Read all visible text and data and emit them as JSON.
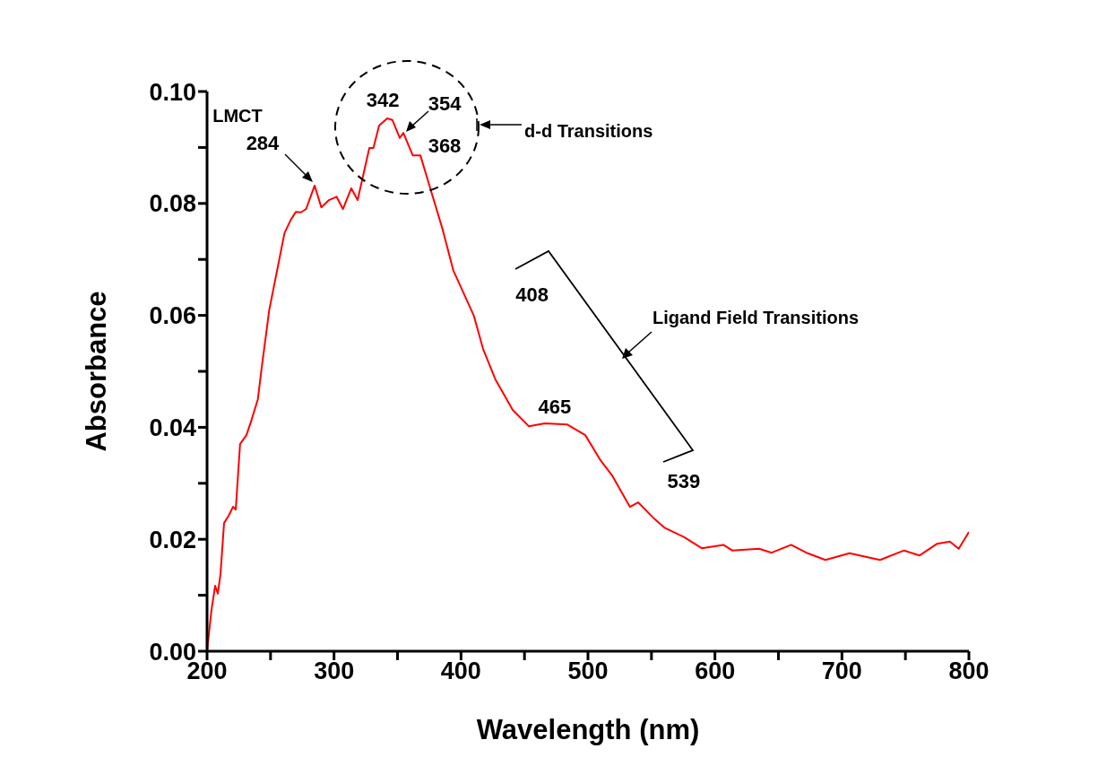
{
  "chart_data": {
    "type": "line",
    "xlabel": "Wavelength (nm)",
    "ylabel": "Absorbance",
    "xlim": [
      200,
      800
    ],
    "xticks": [
      200,
      {
        "value": 250,
        "label": null
      },
      300,
      {
        "value": 350,
        "label": null
      },
      400,
      {
        "value": 450,
        "label": null
      },
      500,
      {
        "value": 550,
        "label": null
      },
      600,
      {
        "value": 650,
        "label": null
      },
      700,
      {
        "value": 750,
        "label": null
      },
      800
    ],
    "ylim": [
      0,
      0.1
    ],
    "yticks": [
      {
        "value": 0,
        "label": "0.00"
      },
      {
        "value": 0.01,
        "label": null
      },
      {
        "value": 0.02,
        "label": "0.02"
      },
      {
        "value": 0.03,
        "label": null
      },
      {
        "value": 0.04,
        "label": "0.04"
      },
      {
        "value": 0.05,
        "label": null
      },
      {
        "value": 0.06,
        "label": "0.06"
      },
      {
        "value": 0.07,
        "label": null
      },
      {
        "value": 0.08,
        "label": "0.08"
      },
      {
        "value": 0.09,
        "label": null
      },
      {
        "value": 0.1,
        "label": "0.10"
      }
    ],
    "grid": false,
    "legend": false,
    "marker": "none",
    "line_style": "solid",
    "series": [
      {
        "color": "#ff0000",
        "x": [
          200,
          203.5,
          206.4,
          208.5,
          210.6,
          213.4,
          217,
          220.5,
          222.6,
          226,
          231,
          234.6,
          240,
          243,
          249,
          256,
          261,
          266,
          270,
          274,
          278,
          284.7,
          290,
          296,
          302,
          307,
          313.6,
          318.6,
          327.8,
          331,
          335.5,
          341.9,
          346,
          351.8,
          354.6,
          362,
          368,
          375.8,
          385.6,
          394,
          406,
          410,
          417.4,
          427,
          440.7,
          453.4,
          466,
          483.8,
          497.9,
          509.9,
          519,
          533,
          539.5,
          552,
          560.7,
          575.5,
          589.6,
          606.6,
          613.6,
          634.8,
          644.7,
          660,
          673,
          687,
          706,
          730,
          749,
          761,
          775,
          785,
          792,
          800
        ],
        "values": [
          0,
          0.0074,
          0.0117,
          0.0103,
          0.0138,
          0.0229,
          0.0242,
          0.0258,
          0.0253,
          0.037,
          0.0386,
          0.041,
          0.045,
          0.0506,
          0.061,
          0.069,
          0.0747,
          0.0771,
          0.0785,
          0.0784,
          0.079,
          0.0832,
          0.0793,
          0.0806,
          0.0812,
          0.079,
          0.0827,
          0.0806,
          0.0899,
          0.0899,
          0.0939,
          0.0952,
          0.0949,
          0.0917,
          0.0926,
          0.0886,
          0.0886,
          0.0827,
          0.0753,
          0.068,
          0.062,
          0.06,
          0.054,
          0.0486,
          0.0431,
          0.0402,
          0.0407,
          0.0405,
          0.0386,
          0.0341,
          0.0314,
          0.0258,
          0.0266,
          0.0237,
          0.022,
          0.0204,
          0.0184,
          0.019,
          0.018,
          0.0183,
          0.0176,
          0.019,
          0.0175,
          0.0163,
          0.0175,
          0.0163,
          0.018,
          0.0171,
          0.0192,
          0.0196,
          0.0183,
          0.0213
        ]
      }
    ],
    "annotations": [
      "LMCT",
      {
        "text": "284",
        "x": 284.7,
        "y": 0.0832
      },
      {
        "text": "342",
        "x": 341.9,
        "y": 0.0952
      },
      {
        "text": "354",
        "x": 354.6,
        "y": 0.0926
      },
      {
        "text": "368",
        "x": 368,
        "y": 0.0886
      },
      "d-d Transitions",
      {
        "text": "408",
        "x": 408,
        "y": 0.061
      },
      "Ligand Field Transitions",
      {
        "text": "465",
        "x": 466,
        "y": 0.0407
      },
      {
        "text": "539",
        "x": 539.5,
        "y": 0.0266
      }
    ]
  }
}
